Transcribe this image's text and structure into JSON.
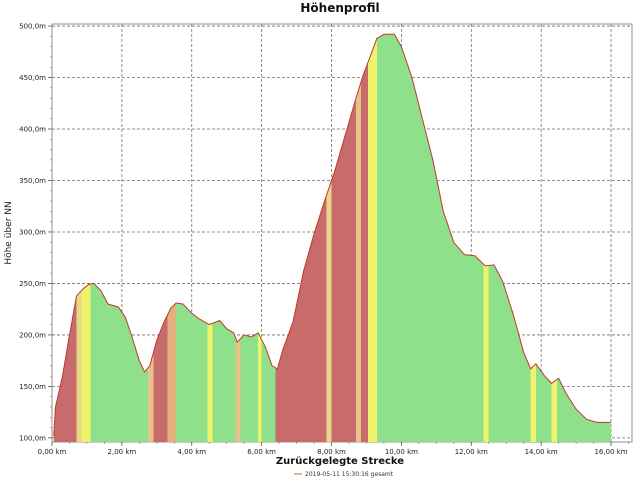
{
  "chart_data": {
    "type": "area",
    "title": "Höhenprofil",
    "xlabel": "Zurückgelegte Strecke",
    "ylabel": "Höhe über NN",
    "xlim": [
      0,
      16.6
    ],
    "ylim": [
      96,
      502
    ],
    "grid": true,
    "legend": {
      "position": "bottom-center",
      "entries": [
        "2019-05-11 15:30:16  gesamt"
      ]
    },
    "x_ticks": [
      {
        "value": 0,
        "label": "0,00 km"
      },
      {
        "value": 2,
        "label": "2,00 km"
      },
      {
        "value": 4,
        "label": "4,00 km"
      },
      {
        "value": 6,
        "label": "6,00 km"
      },
      {
        "value": 8,
        "label": "8,00 km"
      },
      {
        "value": 10,
        "label": "10,00 km"
      },
      {
        "value": 12,
        "label": "12,00 km"
      },
      {
        "value": 14,
        "label": "14,00 km"
      },
      {
        "value": 16,
        "label": "16,00 km"
      }
    ],
    "y_ticks": [
      {
        "value": 100,
        "label": "100,0m"
      },
      {
        "value": 150,
        "label": "150,0m"
      },
      {
        "value": 200,
        "label": "200,0m"
      },
      {
        "value": 250,
        "label": "250,0m"
      },
      {
        "value": 300,
        "label": "300,0m"
      },
      {
        "value": 350,
        "label": "350,0m"
      },
      {
        "value": 400,
        "label": "400,0m"
      },
      {
        "value": 450,
        "label": "450,0m"
      },
      {
        "value": 500,
        "label": "500,0m"
      }
    ],
    "profile": [
      [
        0.05,
        102
      ],
      [
        0.1,
        130
      ],
      [
        0.3,
        160
      ],
      [
        0.5,
        200
      ],
      [
        0.7,
        238
      ],
      [
        0.9,
        245
      ],
      [
        1.05,
        249
      ],
      [
        1.2,
        250
      ],
      [
        1.4,
        243
      ],
      [
        1.6,
        230
      ],
      [
        1.9,
        227
      ],
      [
        2.1,
        217
      ],
      [
        2.3,
        197
      ],
      [
        2.5,
        175
      ],
      [
        2.65,
        164
      ],
      [
        2.8,
        170
      ],
      [
        3.0,
        195
      ],
      [
        3.2,
        212
      ],
      [
        3.4,
        226
      ],
      [
        3.55,
        231
      ],
      [
        3.75,
        230
      ],
      [
        4.0,
        221
      ],
      [
        4.2,
        216
      ],
      [
        4.5,
        210
      ],
      [
        4.8,
        214
      ],
      [
        5.0,
        206
      ],
      [
        5.2,
        202
      ],
      [
        5.3,
        193
      ],
      [
        5.5,
        200
      ],
      [
        5.7,
        198
      ],
      [
        5.9,
        202
      ],
      [
        6.1,
        189
      ],
      [
        6.3,
        170
      ],
      [
        6.45,
        167
      ],
      [
        6.6,
        185
      ],
      [
        6.9,
        213
      ],
      [
        7.2,
        262
      ],
      [
        7.5,
        298
      ],
      [
        7.8,
        330
      ],
      [
        8.1,
        360
      ],
      [
        8.4,
        395
      ],
      [
        8.7,
        430
      ],
      [
        8.9,
        452
      ],
      [
        9.1,
        470
      ],
      [
        9.3,
        488
      ],
      [
        9.5,
        492
      ],
      [
        9.8,
        492
      ],
      [
        10.0,
        480
      ],
      [
        10.3,
        450
      ],
      [
        10.6,
        410
      ],
      [
        10.9,
        370
      ],
      [
        11.2,
        320
      ],
      [
        11.5,
        290
      ],
      [
        11.8,
        278
      ],
      [
        12.1,
        277
      ],
      [
        12.4,
        267
      ],
      [
        12.65,
        268
      ],
      [
        12.9,
        252
      ],
      [
        13.2,
        220
      ],
      [
        13.5,
        183
      ],
      [
        13.7,
        167
      ],
      [
        13.85,
        172
      ],
      [
        14.1,
        160
      ],
      [
        14.3,
        153
      ],
      [
        14.5,
        158
      ],
      [
        14.7,
        144
      ],
      [
        15.0,
        128
      ],
      [
        15.3,
        118
      ],
      [
        15.6,
        115
      ],
      [
        16.0,
        115
      ]
    ],
    "gradient_bands": [
      {
        "from": 0.05,
        "to": 0.7,
        "color": "#c86b6b"
      },
      {
        "from": 0.7,
        "to": 0.85,
        "color": "#e7d98a"
      },
      {
        "from": 0.85,
        "to": 1.1,
        "color": "#eef36a"
      },
      {
        "from": 1.1,
        "to": 2.75,
        "color": "#8ee08a"
      },
      {
        "from": 2.75,
        "to": 2.9,
        "color": "#e7c28a"
      },
      {
        "from": 2.9,
        "to": 3.3,
        "color": "#c86b6b"
      },
      {
        "from": 3.3,
        "to": 3.55,
        "color": "#e3b07e"
      },
      {
        "from": 3.55,
        "to": 4.45,
        "color": "#8ee08a"
      },
      {
        "from": 4.45,
        "to": 4.6,
        "color": "#eef36a"
      },
      {
        "from": 4.6,
        "to": 5.25,
        "color": "#8ee08a"
      },
      {
        "from": 5.25,
        "to": 5.4,
        "color": "#e7c28a"
      },
      {
        "from": 5.4,
        "to": 5.9,
        "color": "#8ee08a"
      },
      {
        "from": 5.9,
        "to": 6.0,
        "color": "#eef36a"
      },
      {
        "from": 6.0,
        "to": 6.4,
        "color": "#8ee08a"
      },
      {
        "from": 6.4,
        "to": 7.85,
        "color": "#c86b6b"
      },
      {
        "from": 7.85,
        "to": 8.0,
        "color": "#e7d98a"
      },
      {
        "from": 8.0,
        "to": 8.7,
        "color": "#c86b6b"
      },
      {
        "from": 8.7,
        "to": 8.85,
        "color": "#e7c28a"
      },
      {
        "from": 8.85,
        "to": 9.05,
        "color": "#c86b6b"
      },
      {
        "from": 9.05,
        "to": 9.3,
        "color": "#eef36a"
      },
      {
        "from": 9.3,
        "to": 12.35,
        "color": "#8ee08a"
      },
      {
        "from": 12.35,
        "to": 12.5,
        "color": "#eef36a"
      },
      {
        "from": 12.5,
        "to": 13.7,
        "color": "#8ee08a"
      },
      {
        "from": 13.7,
        "to": 13.85,
        "color": "#eef36a"
      },
      {
        "from": 13.85,
        "to": 14.3,
        "color": "#8ee08a"
      },
      {
        "from": 14.3,
        "to": 14.45,
        "color": "#eef36a"
      },
      {
        "from": 14.45,
        "to": 16.0,
        "color": "#8ee08a"
      }
    ],
    "colors": {
      "outline": "#c0392b",
      "uphill": "#c86b6b",
      "flat": "#8ee08a",
      "transition": "#eef36a"
    }
  }
}
